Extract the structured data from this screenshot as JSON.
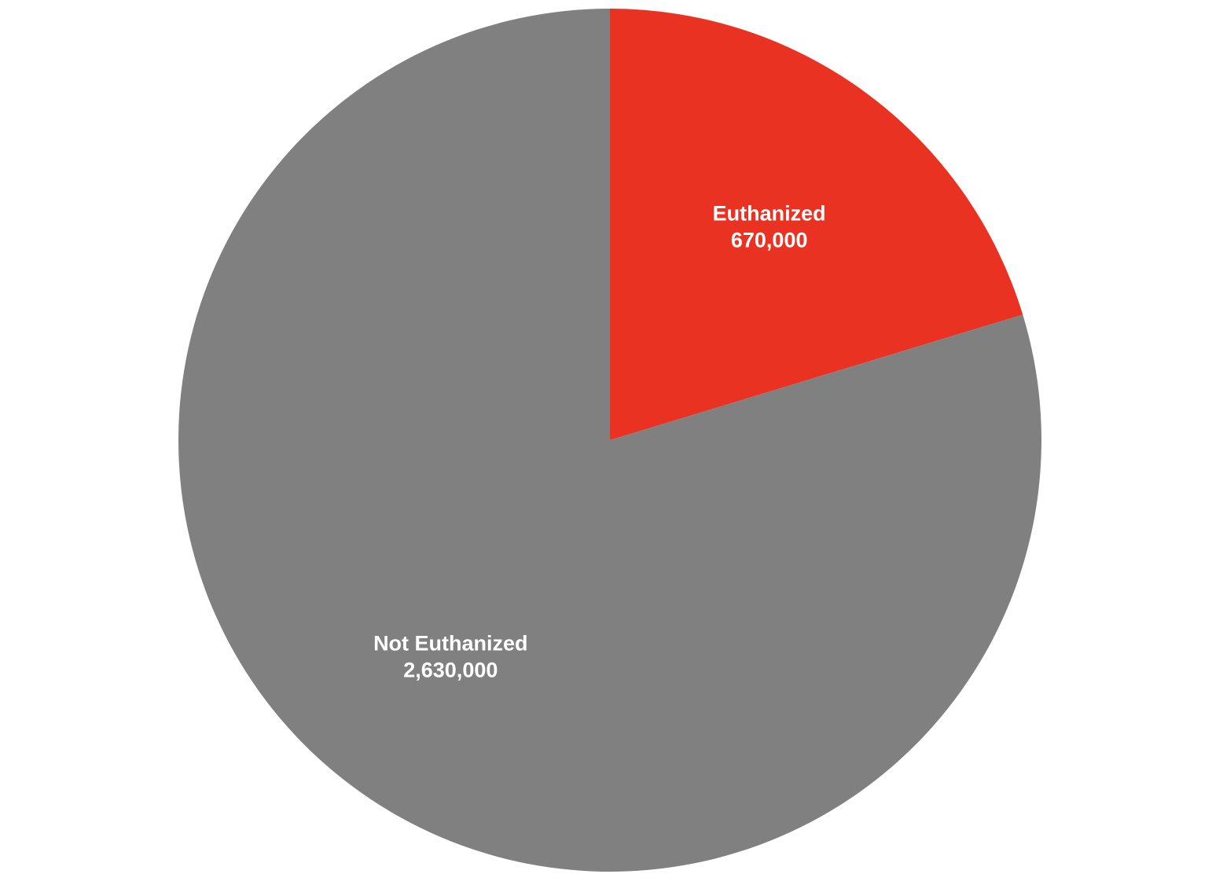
{
  "chart_data": {
    "type": "pie",
    "title": "",
    "slices": [
      {
        "label": "Euthanized",
        "value": 670000,
        "value_label": "670,000",
        "color": "#EA3223"
      },
      {
        "label": "Not Euthanized",
        "value": 2630000,
        "value_label": "2,630,000",
        "color": "#808080"
      }
    ],
    "start_angle": "top",
    "direction": "clockwise",
    "legend": "none"
  }
}
